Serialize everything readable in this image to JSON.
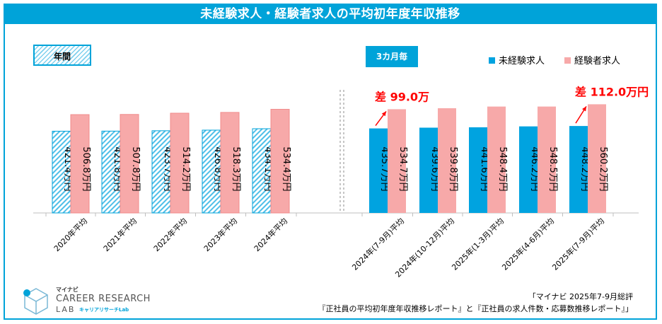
{
  "title": "未経験求人・経験者求人の平均初年度年収推移",
  "tags": {
    "annual": "年間",
    "quarterly": "3カ月毎"
  },
  "legend": {
    "unexperienced": "未経験求人",
    "experienced": "経験者求人"
  },
  "colors": {
    "accent": "#00a3d9",
    "unexperienced_solid": "#00a3e0",
    "experienced": "#f7a9a9",
    "diff_text": "#ff0000"
  },
  "chart_data": {
    "type": "bar",
    "unit": "万円",
    "ylim": [
      0,
      620
    ],
    "categories": [
      "2020年平均",
      "2021年平均",
      "2022年平均",
      "2023年平均",
      "2024年平均",
      "2024年(7-9月)平均",
      "2024年(10-12月)平均",
      "2025年(1-3月)平均",
      "2025年(4-6月)平均",
      "2025年(7-9月)平均"
    ],
    "groups": [
      "annual",
      "annual",
      "annual",
      "annual",
      "annual",
      "quarterly",
      "quarterly",
      "quarterly",
      "quarterly",
      "quarterly"
    ],
    "series": [
      {
        "name": "未経験求人",
        "values": [
          421.4,
          421.8,
          423.7,
          426.8,
          434.1,
          435.7,
          439.6,
          441.6,
          446.2,
          448.2
        ],
        "labels": [
          "421.4万円",
          "421.8万円",
          "423.7万円",
          "426.8万円",
          "434.1万円",
          "435.7万円",
          "439.6万円",
          "441.6万円",
          "446.2万円",
          "448.2万円"
        ]
      },
      {
        "name": "経験者求人",
        "values": [
          506.8,
          507.8,
          514.2,
          518.3,
          534.4,
          534.7,
          539.8,
          548.4,
          548.5,
          560.2
        ],
        "labels": [
          "506.8万円",
          "507.8万円",
          "514.2万円",
          "518.3万円",
          "534.4万円",
          "534.7万円",
          "539.8万円",
          "548.4万円",
          "548.5万円",
          "560.2万円"
        ]
      }
    ],
    "annotations": [
      {
        "category_index": 5,
        "text": "差 99.0万"
      },
      {
        "category_index": 9,
        "text": "差 112.0万円"
      }
    ]
  },
  "logo": {
    "brand": "マイナビ",
    "line1": "CAREER RESEARCH",
    "line2": "LAB",
    "sub": "キャリアリサーチLab"
  },
  "source": {
    "line1": "「マイナビ 2025年7-9月総評",
    "line2": "『正社員の平均初年度年収推移レポート』と『正社員の求人件数・応募数推移レポート』」"
  }
}
